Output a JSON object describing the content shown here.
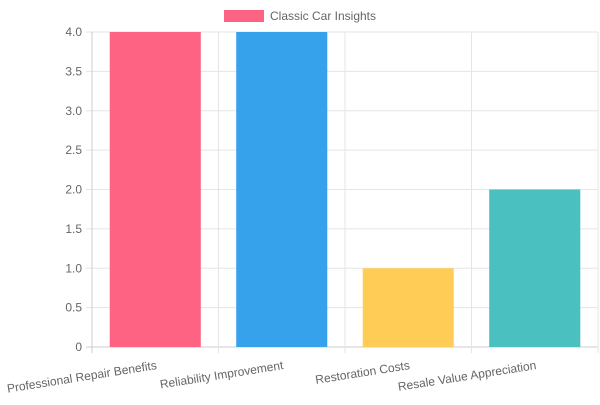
{
  "chart_data": {
    "type": "bar",
    "categories": [
      "Professional Repair Benefits",
      "Reliability Improvement",
      "Restoration Costs",
      "Resale Value Appreciation"
    ],
    "series": [
      {
        "name": "Classic Car Insights",
        "values": [
          4,
          4,
          1,
          2
        ],
        "colors": [
          "#ff6384",
          "#36a2eb",
          "#ffcd56",
          "#4bc0c0"
        ]
      }
    ],
    "ylim": [
      0,
      4
    ],
    "yticks": [
      "0",
      "0.5",
      "1.0",
      "1.5",
      "2.0",
      "2.5",
      "3.0",
      "3.5",
      "4.0"
    ],
    "grid": true,
    "legend_position": "top-center"
  },
  "legend": {
    "label": "Classic Car Insights",
    "color": "#ff6384"
  }
}
